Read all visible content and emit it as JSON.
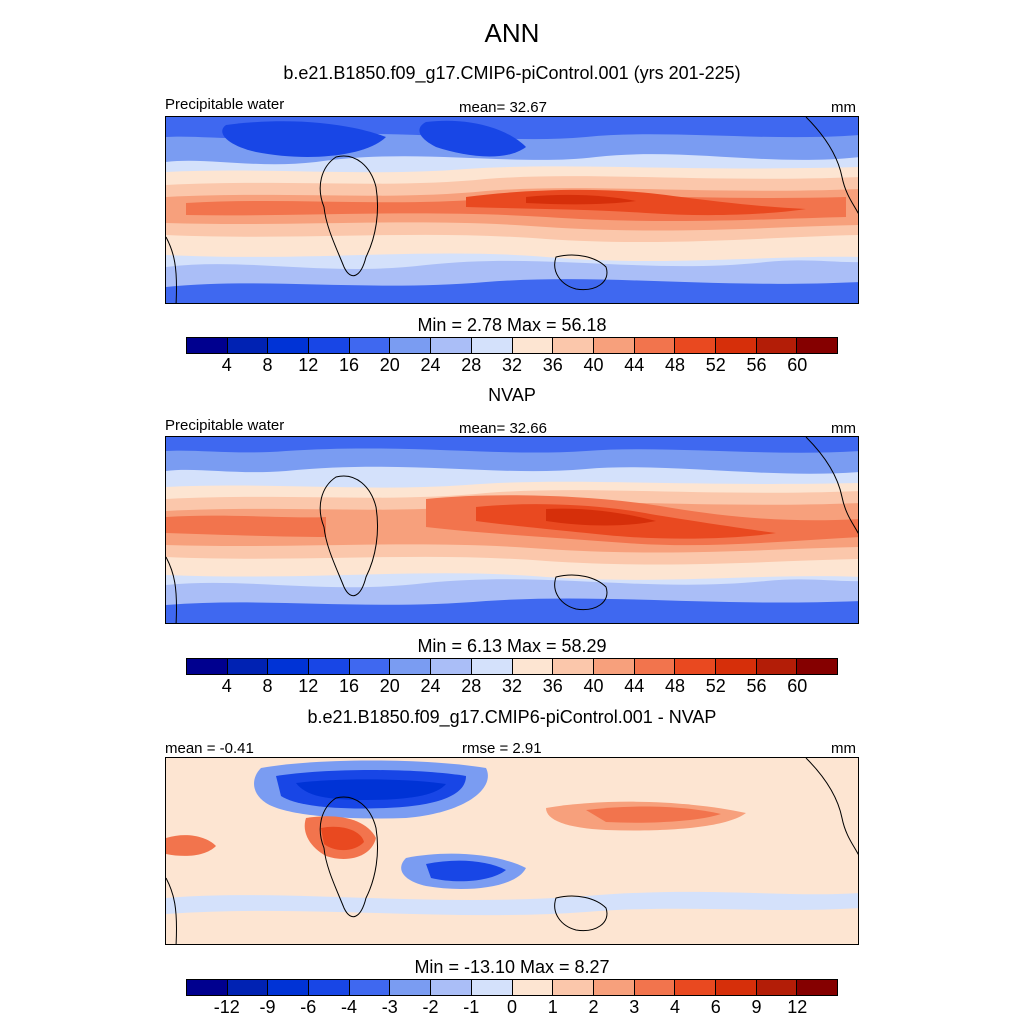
{
  "figure": {
    "season": "ANN"
  },
  "panels": [
    {
      "title": "b.e21.B1850.f09_g17.CMIP6-piControl.001 (yrs 201-225)",
      "left_label": "Precipitable water",
      "center_label": "mean=  32.67",
      "units": "mm",
      "stats": "Min =   2.78 Max =  56.18",
      "field_kind": "absolute",
      "field_min": 2.78,
      "field_max": 56.18,
      "field_mean": 32.67
    },
    {
      "title": "NVAP",
      "left_label": "Precipitable water",
      "center_label": "mean=  32.66",
      "units": "mm",
      "stats": "Min =   6.13 Max =  58.29",
      "field_kind": "absolute",
      "field_min": 6.13,
      "field_max": 58.29,
      "field_mean": 32.66
    },
    {
      "title": "b.e21.B1850.f09_g17.CMIP6-piControl.001 - NVAP",
      "left_label": "mean =  -0.41",
      "center_label": "rmse =   2.91",
      "units": "mm",
      "stats": "Min = -13.10 Max =   8.27",
      "field_kind": "difference",
      "field_min": -13.1,
      "field_max": 8.27,
      "field_mean": -0.41,
      "field_rmse": 2.91
    }
  ],
  "colorbars": {
    "absolute": {
      "levels": [
        "4",
        "8",
        "12",
        "16",
        "20",
        "24",
        "28",
        "32",
        "36",
        "40",
        "44",
        "48",
        "52",
        "56",
        "60"
      ],
      "colors": [
        "#00008f",
        "#0022b3",
        "#0033d6",
        "#1846e6",
        "#3f68f0",
        "#7a9cf2",
        "#aabef7",
        "#d4e1fb",
        "#fde5d2",
        "#fbc7ab",
        "#f7a07c",
        "#f2744d",
        "#e94920",
        "#d62f0a",
        "#b31d07",
        "#850000"
      ]
    },
    "difference": {
      "levels": [
        "-12",
        "-9",
        "-6",
        "-4",
        "-3",
        "-2",
        "-1",
        "0",
        "1",
        "2",
        "3",
        "4",
        "6",
        "9",
        "12"
      ],
      "colors": [
        "#00008f",
        "#0022b3",
        "#0033d6",
        "#1846e6",
        "#3f68f0",
        "#7a9cf2",
        "#aabef7",
        "#d4e1fb",
        "#fde5d2",
        "#fbc7ab",
        "#f7a07c",
        "#f2744d",
        "#e94920",
        "#d62f0a",
        "#b31d07",
        "#850000"
      ]
    }
  }
}
